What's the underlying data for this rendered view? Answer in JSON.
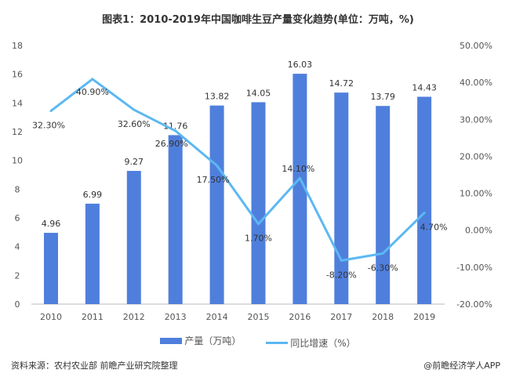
{
  "title": "图表1：2010-2019年中国咖啡生豆产量变化趋势(单位：万吨，%)",
  "chart_data": {
    "type": "bar+line",
    "categories": [
      "2010",
      "2011",
      "2012",
      "2013",
      "2014",
      "2015",
      "2016",
      "2017",
      "2018",
      "2019"
    ],
    "series": [
      {
        "name": "产量（万吨）",
        "type": "bar",
        "axis": "left",
        "color": "#4f7fdc",
        "values": [
          4.96,
          6.99,
          9.27,
          11.76,
          13.82,
          14.05,
          16.03,
          14.72,
          13.79,
          14.43
        ],
        "labels": [
          "4.96",
          "6.99",
          "9.27",
          "11.76",
          "13.82",
          "14.05",
          "16.03",
          "14.72",
          "13.79",
          "14.43"
        ]
      },
      {
        "name": "同比增速（%）",
        "type": "line",
        "axis": "right",
        "color": "#5cb8f2",
        "values": [
          32.3,
          40.9,
          32.6,
          26.9,
          17.5,
          1.7,
          14.1,
          -8.2,
          -6.3,
          4.7
        ],
        "labels": [
          "32.30%",
          "40.90%",
          "32.60%",
          "26.90%",
          "17.50%",
          "1.70%",
          "14.10%",
          "-8.20%",
          "-6.30%",
          "4.70%"
        ]
      }
    ],
    "left_axis": {
      "ylim": [
        0,
        18
      ],
      "ticks": [
        "0",
        "2",
        "4",
        "6",
        "8",
        "10",
        "12",
        "14",
        "16",
        "18"
      ]
    },
    "right_axis": {
      "ylim": [
        -20,
        50
      ],
      "ticks": [
        "-20.00%",
        "-10.00%",
        "0.00%",
        "10.00%",
        "20.00%",
        "30.00%",
        "40.00%",
        "50.00%"
      ]
    },
    "grid": false,
    "legend": "bottom"
  },
  "source": "资料来源：农村农业部 前瞻产业研究院整理",
  "credit": "@前瞻经济学人APP"
}
